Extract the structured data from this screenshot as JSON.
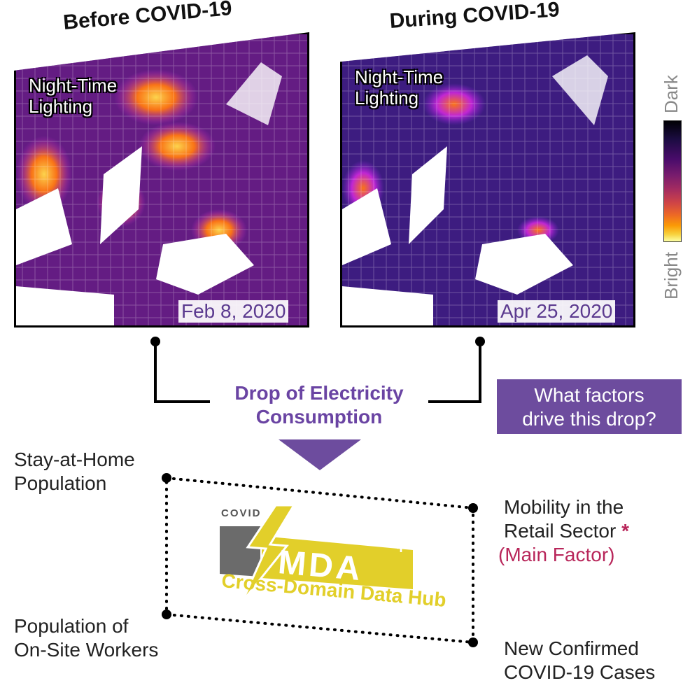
{
  "panels": [
    {
      "title": "Before COVID-19",
      "inset_label": [
        "Night-Time",
        "Lighting"
      ],
      "date": "Feb 8, 2020"
    },
    {
      "title": "During COVID-19",
      "inset_label": [
        "Night-Time",
        "Lighting"
      ],
      "date": "Apr 25, 2020"
    }
  ],
  "colorbar": {
    "top_label": "Dark",
    "bottom_label": "Bright"
  },
  "center": {
    "drop_label": [
      "Drop of Electricity",
      "Consumption"
    ],
    "question": [
      "What factors",
      "drive this drop?"
    ]
  },
  "logo": {
    "covid": "COVID",
    "mda": "MDA",
    "plus": "+",
    "hub_label": "Cross-Domain Data Hub"
  },
  "factors": {
    "stay_home": [
      "Stay-at-Home",
      "Population"
    ],
    "onsite_workers": [
      "Population of",
      "On-Site Workers"
    ],
    "mobility": [
      "Mobility in the",
      "Retail Sector"
    ],
    "mobility_marker": "*",
    "main_factor": "(Main Factor)",
    "new_cases": [
      "New Confirmed",
      "COVID-19 Cases"
    ]
  },
  "colors": {
    "purple": "#6d4c9e",
    "text_purple": "#5b3a8f",
    "accent_red": "#b8265a",
    "logo_yellow": "#e2cf2a",
    "logo_gray": "#6b6b6b"
  }
}
